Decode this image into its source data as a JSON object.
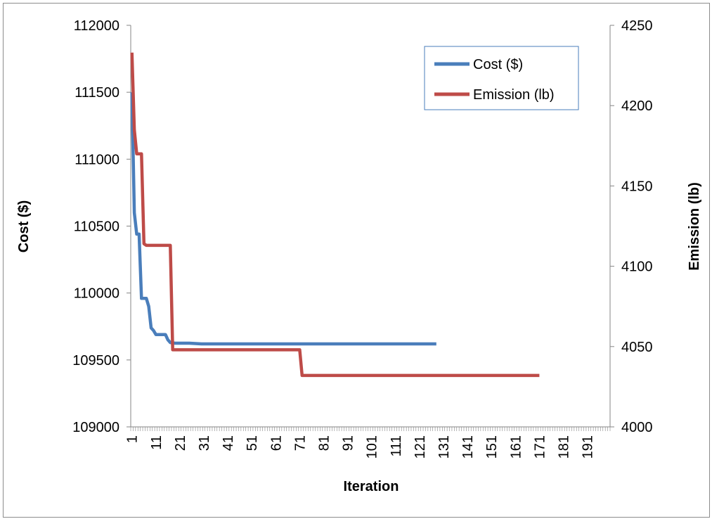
{
  "chart_data": {
    "type": "line",
    "xlabel": "Iteration",
    "ylabel_left": "Cost ($)",
    "ylabel_right": "Emission (lb)",
    "x_categories_range": [
      1,
      200
    ],
    "x_tick_labels": [
      "1",
      "11",
      "21",
      "31",
      "41",
      "51",
      "61",
      "71",
      "81",
      "91",
      "101",
      "111",
      "121",
      "131",
      "141",
      "151",
      "161",
      "171",
      "181",
      "191"
    ],
    "y_left": {
      "lim": [
        109000,
        112000
      ],
      "ticks": [
        "109000",
        "109500",
        "110000",
        "110500",
        "111000",
        "111500",
        "112000"
      ]
    },
    "y_right": {
      "lim": [
        4000,
        4250
      ],
      "ticks": [
        "4000",
        "4050",
        "4100",
        "4150",
        "4200",
        "4250"
      ]
    },
    "legend": {
      "placement": "top-right",
      "entries": [
        "Cost ($)",
        "Emission (lb)"
      ]
    },
    "series": [
      {
        "name": "Cost ($)",
        "axis": "left",
        "color": "#4a7ebb",
        "points": [
          [
            1,
            111500
          ],
          [
            2,
            110600
          ],
          [
            3,
            110440
          ],
          [
            4,
            110440
          ],
          [
            5,
            109960
          ],
          [
            6,
            109960
          ],
          [
            7,
            109960
          ],
          [
            8,
            109900
          ],
          [
            9,
            109740
          ],
          [
            10,
            109720
          ],
          [
            11,
            109690
          ],
          [
            12,
            109690
          ],
          [
            13,
            109690
          ],
          [
            14,
            109690
          ],
          [
            15,
            109690
          ],
          [
            16,
            109650
          ],
          [
            17,
            109630
          ],
          [
            19,
            109625
          ],
          [
            20,
            109625
          ],
          [
            25,
            109625
          ],
          [
            30,
            109620
          ],
          [
            40,
            109620
          ],
          [
            60,
            109620
          ],
          [
            80,
            109620
          ],
          [
            100,
            109620
          ],
          [
            128,
            109620
          ]
        ]
      },
      {
        "name": "Emission (lb)",
        "axis": "right",
        "color": "#be4b48",
        "points": [
          [
            1,
            4233
          ],
          [
            2,
            4185
          ],
          [
            3,
            4170
          ],
          [
            4,
            4170
          ],
          [
            5,
            4170
          ],
          [
            6,
            4114
          ],
          [
            7,
            4113
          ],
          [
            8,
            4113
          ],
          [
            17,
            4113
          ],
          [
            18,
            4048
          ],
          [
            19,
            4048
          ],
          [
            30,
            4048
          ],
          [
            60,
            4048
          ],
          [
            70,
            4048
          ],
          [
            71,
            4048
          ],
          [
            72,
            4032
          ],
          [
            100,
            4032
          ],
          [
            150,
            4032
          ],
          [
            171,
            4032
          ]
        ]
      }
    ]
  }
}
